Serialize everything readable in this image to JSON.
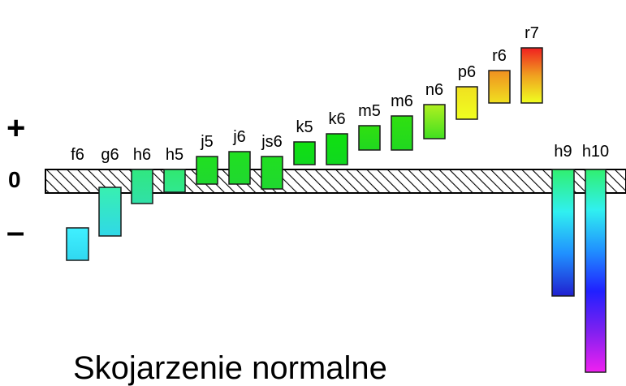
{
  "signs": {
    "plus": "+",
    "zero": "0",
    "minus": "–"
  },
  "caption": "Skojarzenie normalne",
  "zero_line": {
    "hatched": true
  },
  "fields": [
    {
      "label": "f6",
      "upper": -3.6,
      "lower": -5.6,
      "colors": [
        "#40f0ff",
        "#30d8f0"
      ]
    },
    {
      "label": "g6",
      "upper": -1.1,
      "lower": -4.1,
      "colors": [
        "#38f0b0",
        "#30d8e8"
      ]
    },
    {
      "label": "h6",
      "upper": 0.0,
      "lower": -2.1,
      "colors": [
        "#30e880",
        "#30e0a8"
      ]
    },
    {
      "label": "h5",
      "upper": 0.0,
      "lower": -1.4,
      "colors": [
        "#30e870",
        "#30e890"
      ]
    },
    {
      "label": "j5",
      "upper": 0.8,
      "lower": -0.9,
      "colors": [
        "#20e020",
        "#20d830"
      ]
    },
    {
      "label": "j6",
      "upper": 1.1,
      "lower": -0.9,
      "colors": [
        "#20e020",
        "#20d830"
      ]
    },
    {
      "label": "js6",
      "upper": 0.8,
      "lower": -1.2,
      "colors": [
        "#20e020",
        "#20d830"
      ]
    },
    {
      "label": "k5",
      "upper": 1.7,
      "lower": 0.3,
      "colors": [
        "#10e010",
        "#10d820"
      ]
    },
    {
      "label": "k6",
      "upper": 2.2,
      "lower": 0.3,
      "colors": [
        "#10e010",
        "#10d820"
      ]
    },
    {
      "label": "m5",
      "upper": 2.7,
      "lower": 1.2,
      "colors": [
        "#30e010",
        "#20d820"
      ]
    },
    {
      "label": "m6",
      "upper": 3.3,
      "lower": 1.2,
      "colors": [
        "#30e010",
        "#20d820"
      ]
    },
    {
      "label": "n6",
      "upper": 4.0,
      "lower": 1.9,
      "colors": [
        "#b0f020",
        "#40e020"
      ]
    },
    {
      "label": "p6",
      "upper": 5.1,
      "lower": 3.1,
      "colors": [
        "#f0e020",
        "#f0ff20"
      ]
    },
    {
      "label": "r6",
      "upper": 6.1,
      "lower": 4.1,
      "colors": [
        "#f09020",
        "#f0e020"
      ]
    },
    {
      "label": "r7",
      "upper": 7.5,
      "lower": 4.1,
      "colors": [
        "#f02020",
        "#f0a020",
        "#f0ff20"
      ]
    },
    {
      "label": "h9",
      "upper": 0.0,
      "lower": -7.8,
      "colors": [
        "#30f070",
        "#30f0f0",
        "#2090ff",
        "#2020d0"
      ]
    },
    {
      "label": "h10",
      "upper": 0.0,
      "lower": -12.5,
      "colors": [
        "#30f070",
        "#30f0f0",
        "#2090ff",
        "#2020ff",
        "#8020f0",
        "#f020f0"
      ]
    }
  ]
}
